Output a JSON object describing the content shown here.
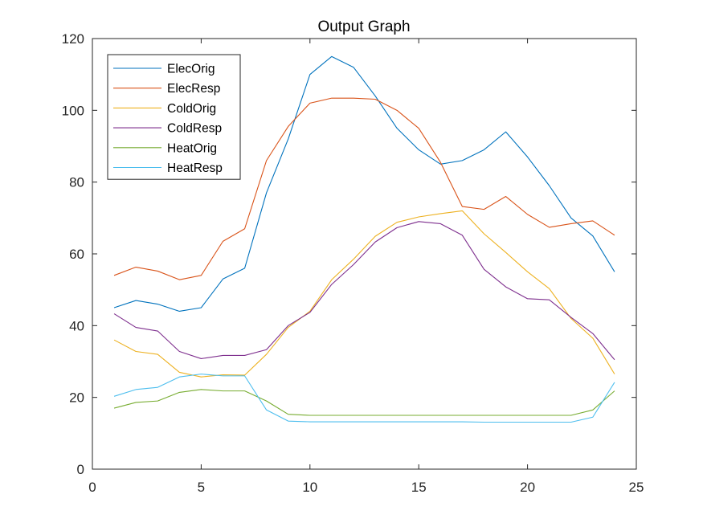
{
  "chart_data": {
    "type": "line",
    "title": "Output Graph",
    "xlabel": "",
    "ylabel": "",
    "xlim": [
      0,
      25
    ],
    "ylim": [
      0,
      120
    ],
    "xticks": [
      0,
      5,
      10,
      15,
      20,
      25
    ],
    "yticks": [
      0,
      20,
      40,
      60,
      80,
      100,
      120
    ],
    "grid": false,
    "legend_position": "top-left",
    "x": [
      1,
      2,
      3,
      4,
      5,
      6,
      7,
      8,
      9,
      10,
      11,
      12,
      13,
      14,
      15,
      16,
      17,
      18,
      19,
      20,
      21,
      22,
      23,
      24
    ],
    "series": [
      {
        "name": "ElecOrig",
        "color": "#0072BD",
        "values": [
          45,
          47,
          46,
          44,
          45,
          53,
          56,
          77,
          92,
          110,
          115,
          112,
          104,
          95,
          89,
          85,
          86,
          89,
          94,
          87,
          79,
          70,
          65,
          55
        ]
      },
      {
        "name": "ElecResp",
        "color": "#D95319",
        "values": [
          54,
          56.3,
          55.2,
          52.8,
          54,
          63.5,
          67,
          86,
          95.5,
          102,
          103.4,
          103.4,
          103.1,
          100,
          95,
          85.5,
          73.2,
          72.4,
          76,
          71,
          67.4,
          68.4,
          69.2,
          65.2
        ]
      },
      {
        "name": "ColdOrig",
        "color": "#EDB120",
        "values": [
          36,
          32.8,
          32,
          27,
          25.7,
          26.3,
          26.2,
          32,
          39.5,
          44,
          52.8,
          58.5,
          64.9,
          68.8,
          70.3,
          71.2,
          72,
          65.6,
          60.4,
          55,
          50.3,
          42,
          36.5,
          26.5
        ]
      },
      {
        "name": "ColdResp",
        "color": "#7E2F8E",
        "values": [
          43.3,
          39.5,
          38.5,
          32.8,
          30.8,
          31.7,
          31.7,
          33.3,
          40,
          43.7,
          51.5,
          57,
          63.3,
          67.3,
          69,
          68.4,
          65.2,
          55.7,
          50.8,
          47.5,
          47.2,
          42.3,
          37.8,
          30.5
        ]
      },
      {
        "name": "HeatOrig",
        "color": "#77AC30",
        "values": [
          17,
          18.6,
          19,
          21.4,
          22.2,
          21.8,
          21.8,
          19,
          15.3,
          15,
          15,
          15,
          15,
          15,
          15,
          15,
          15,
          15,
          15,
          15,
          15,
          15,
          16.5,
          21.8
        ]
      },
      {
        "name": "HeatResp",
        "color": "#4DBEEE",
        "values": [
          20.3,
          22.2,
          22.8,
          25.7,
          26.5,
          26,
          26,
          16.5,
          13.4,
          13.2,
          13.2,
          13.2,
          13.2,
          13.2,
          13.2,
          13.2,
          13.2,
          13.1,
          13.1,
          13.1,
          13.1,
          13.1,
          14.5,
          24.2
        ]
      }
    ]
  }
}
